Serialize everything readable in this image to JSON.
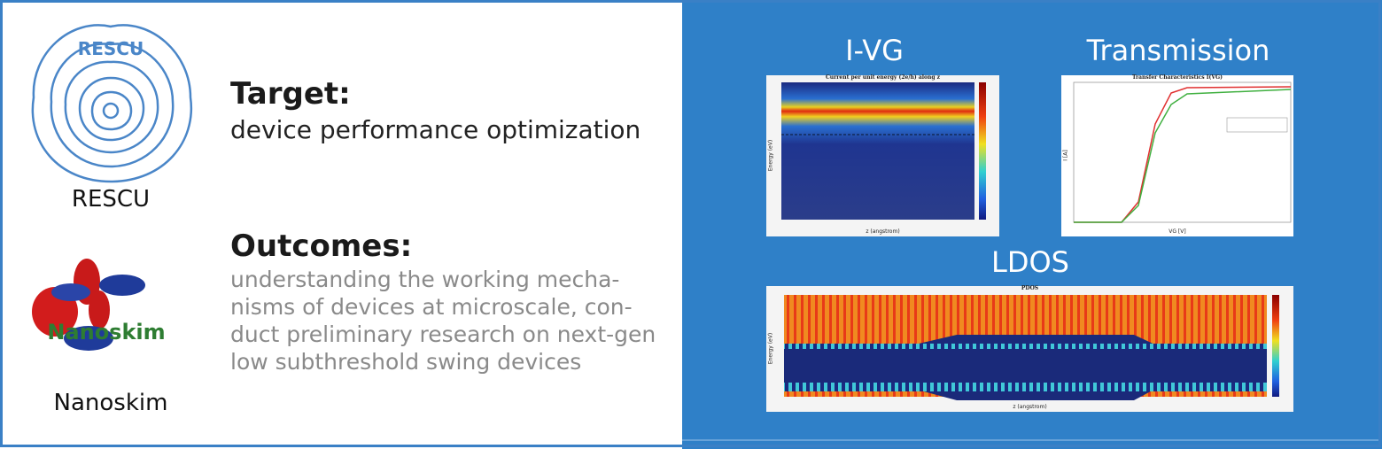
{
  "logos": {
    "rescu": {
      "logo_text": "RESCU",
      "label": "RESCU"
    },
    "nanoskim": {
      "logo_text": "Nanoskim",
      "label": "Nanoskim"
    }
  },
  "target": {
    "heading": "Target:",
    "text": "device performance optimization"
  },
  "outcomes": {
    "heading": "Outcomes:",
    "lines": [
      "understanding the working mecha-",
      "nisms of devices at microscale, con-",
      "duct preliminary research on next-gen",
      "low subthreshold swing devices"
    ]
  },
  "panels": [
    {
      "title": "I-VG",
      "plot_title": "Current per unit energy (2e/h) along z",
      "xlabel": "z (angstrom)",
      "ylabel": "Energy (eV)"
    },
    {
      "title": "Transmission",
      "plot_title": "Transfer Characteristics I(VG)",
      "xlabel": "VG [V]",
      "ylabel": "I [A]"
    },
    {
      "title": "LDOS",
      "plot_title": "PDOS",
      "xlabel": "z (angstrom)",
      "ylabel": "Energy (eV)"
    }
  ]
}
